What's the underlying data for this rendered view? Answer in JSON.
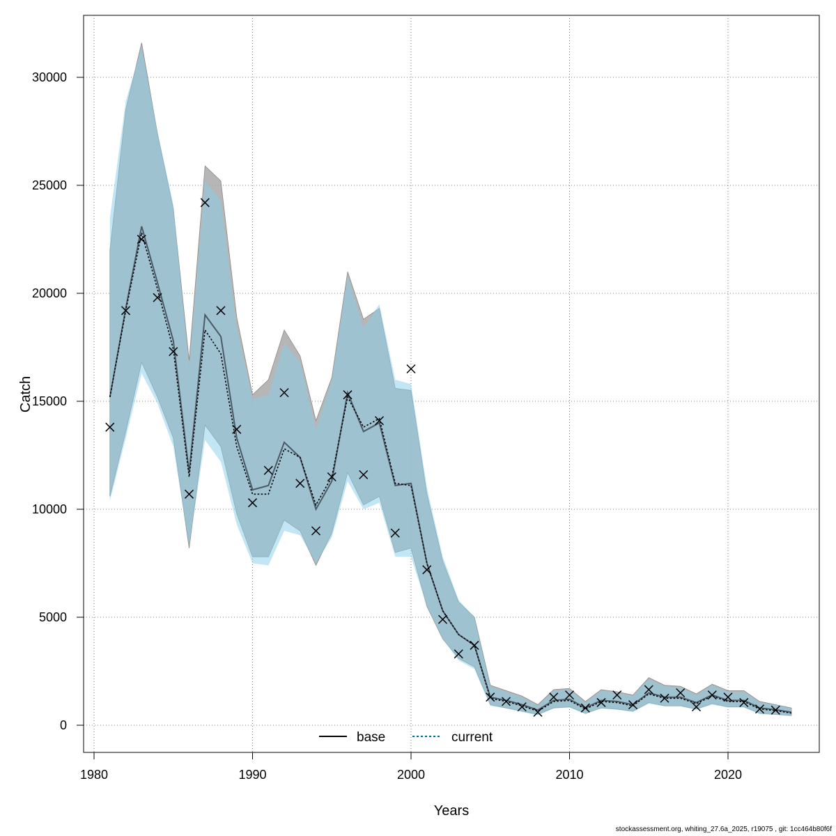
{
  "chart_data": {
    "type": "line",
    "title": "",
    "xlabel": "Years",
    "ylabel": "Catch",
    "xlim": [
      1980,
      2025
    ],
    "ylim": [
      0,
      32000
    ],
    "grid": true,
    "legend_position": "bottom-center",
    "x_ticks": [
      1980,
      1990,
      2000,
      2010,
      2020
    ],
    "y_ticks": [
      0,
      5000,
      10000,
      15000,
      20000,
      25000,
      30000
    ],
    "colors": {
      "base_band": "#a9a9a9",
      "current_band": "#87ceeb",
      "base_line": "#000000",
      "current_line": "#00688b",
      "observed": "#000000"
    },
    "years": [
      1981,
      1982,
      1983,
      1984,
      1985,
      1986,
      1987,
      1988,
      1989,
      1990,
      1991,
      1992,
      1993,
      1994,
      1995,
      1996,
      1997,
      1998,
      1999,
      2000,
      2001,
      2002,
      2003,
      2004,
      2005,
      2006,
      2007,
      2008,
      2009,
      2010,
      2011,
      2012,
      2013,
      2014,
      2015,
      2016,
      2017,
      2018,
      2019,
      2020,
      2021,
      2022,
      2023,
      2024
    ],
    "series": [
      {
        "name": "base",
        "values": [
          15200,
          19300,
          23100,
          20500,
          17800,
          11700,
          19000,
          18000,
          13300,
          10900,
          11100,
          13100,
          12400,
          10000,
          11300,
          15400,
          13600,
          14000,
          11100,
          11200,
          7500,
          5300,
          4200,
          3700,
          1300,
          1150,
          950,
          700,
          1150,
          1200,
          800,
          1150,
          1100,
          950,
          1500,
          1300,
          1300,
          1050,
          1400,
          1150,
          1150,
          800,
          720,
          600
        ],
        "lower": [
          10600,
          13600,
          16800,
          15200,
          13300,
          8200,
          13900,
          12900,
          9800,
          7800,
          7800,
          9500,
          9000,
          7400,
          8900,
          11700,
          10200,
          10600,
          8000,
          8200,
          5500,
          4000,
          3100,
          2700,
          950,
          800,
          650,
          500,
          800,
          850,
          550,
          800,
          750,
          650,
          1050,
          900,
          900,
          750,
          1000,
          850,
          850,
          550,
          500,
          450
        ],
        "upper": [
          22000,
          28500,
          31600,
          27400,
          23900,
          16900,
          25900,
          25200,
          18900,
          15300,
          16000,
          18300,
          17100,
          14100,
          16100,
          21000,
          18800,
          19300,
          15600,
          15500,
          10700,
          7600,
          5700,
          5000,
          1850,
          1600,
          1350,
          950,
          1650,
          1700,
          1100,
          1650,
          1550,
          1400,
          2200,
          1850,
          1800,
          1450,
          1900,
          1600,
          1600,
          1100,
          950,
          800
        ]
      },
      {
        "name": "current",
        "values": [
          15200,
          19200,
          22800,
          20200,
          17400,
          11500,
          18300,
          17200,
          12900,
          10700,
          10700,
          12800,
          12400,
          10200,
          11500,
          15200,
          13800,
          14200,
          11200,
          11100,
          7500,
          5300,
          4200,
          3700,
          1250,
          1100,
          900,
          650,
          1100,
          1150,
          750,
          1100,
          1050,
          900,
          1450,
          1250,
          1250,
          1000,
          1350,
          1100,
          1100,
          750,
          680,
          560
        ],
        "lower": [
          10400,
          13300,
          16300,
          14900,
          12900,
          8300,
          13200,
          12200,
          9300,
          7500,
          7400,
          9000,
          8800,
          7500,
          8700,
          11300,
          10000,
          10300,
          7800,
          7800,
          5500,
          4000,
          3000,
          2600,
          900,
          780,
          620,
          460,
          780,
          820,
          520,
          780,
          720,
          620,
          1000,
          870,
          870,
          720,
          960,
          820,
          820,
          520,
          480,
          420
        ],
        "upper": [
          23500,
          28900,
          31400,
          27500,
          24100,
          16500,
          25200,
          24300,
          18400,
          15100,
          15300,
          17700,
          16800,
          13700,
          16000,
          20800,
          18400,
          19500,
          16000,
          15800,
          11000,
          7800,
          5800,
          5000,
          1800,
          1550,
          1300,
          900,
          1600,
          1650,
          1050,
          1600,
          1500,
          1350,
          2150,
          1800,
          1750,
          1400,
          1850,
          1550,
          1550,
          1050,
          950,
          780
        ]
      },
      {
        "name": "observed",
        "years": [
          1981,
          1982,
          1983,
          1984,
          1985,
          1986,
          1987,
          1988,
          1989,
          1990,
          1991,
          1992,
          1993,
          1994,
          1995,
          1996,
          1997,
          1998,
          1999,
          2000,
          2001,
          2002,
          2003,
          2004,
          2005,
          2006,
          2007,
          2008,
          2009,
          2010,
          2011,
          2012,
          2013,
          2014,
          2015,
          2016,
          2017,
          2018,
          2019,
          2020,
          2021,
          2022,
          2023
        ],
        "values": [
          13800,
          19200,
          22500,
          19800,
          17300,
          10700,
          24200,
          19200,
          13700,
          10300,
          11800,
          15400,
          11200,
          9000,
          11500,
          15300,
          11600,
          14100,
          8900,
          16500,
          7200,
          4900,
          3300,
          3700,
          1300,
          1100,
          850,
          600,
          1300,
          1400,
          800,
          1050,
          1400,
          950,
          1650,
          1250,
          1500,
          850,
          1400,
          1300,
          1050,
          750,
          700
        ]
      }
    ]
  },
  "legend": {
    "base_label": "base",
    "current_label": "current"
  },
  "footer": {
    "text": "stockassessment.org, whiting_27.6a_2025, r19075 , git: 1cc464b80f6f"
  }
}
